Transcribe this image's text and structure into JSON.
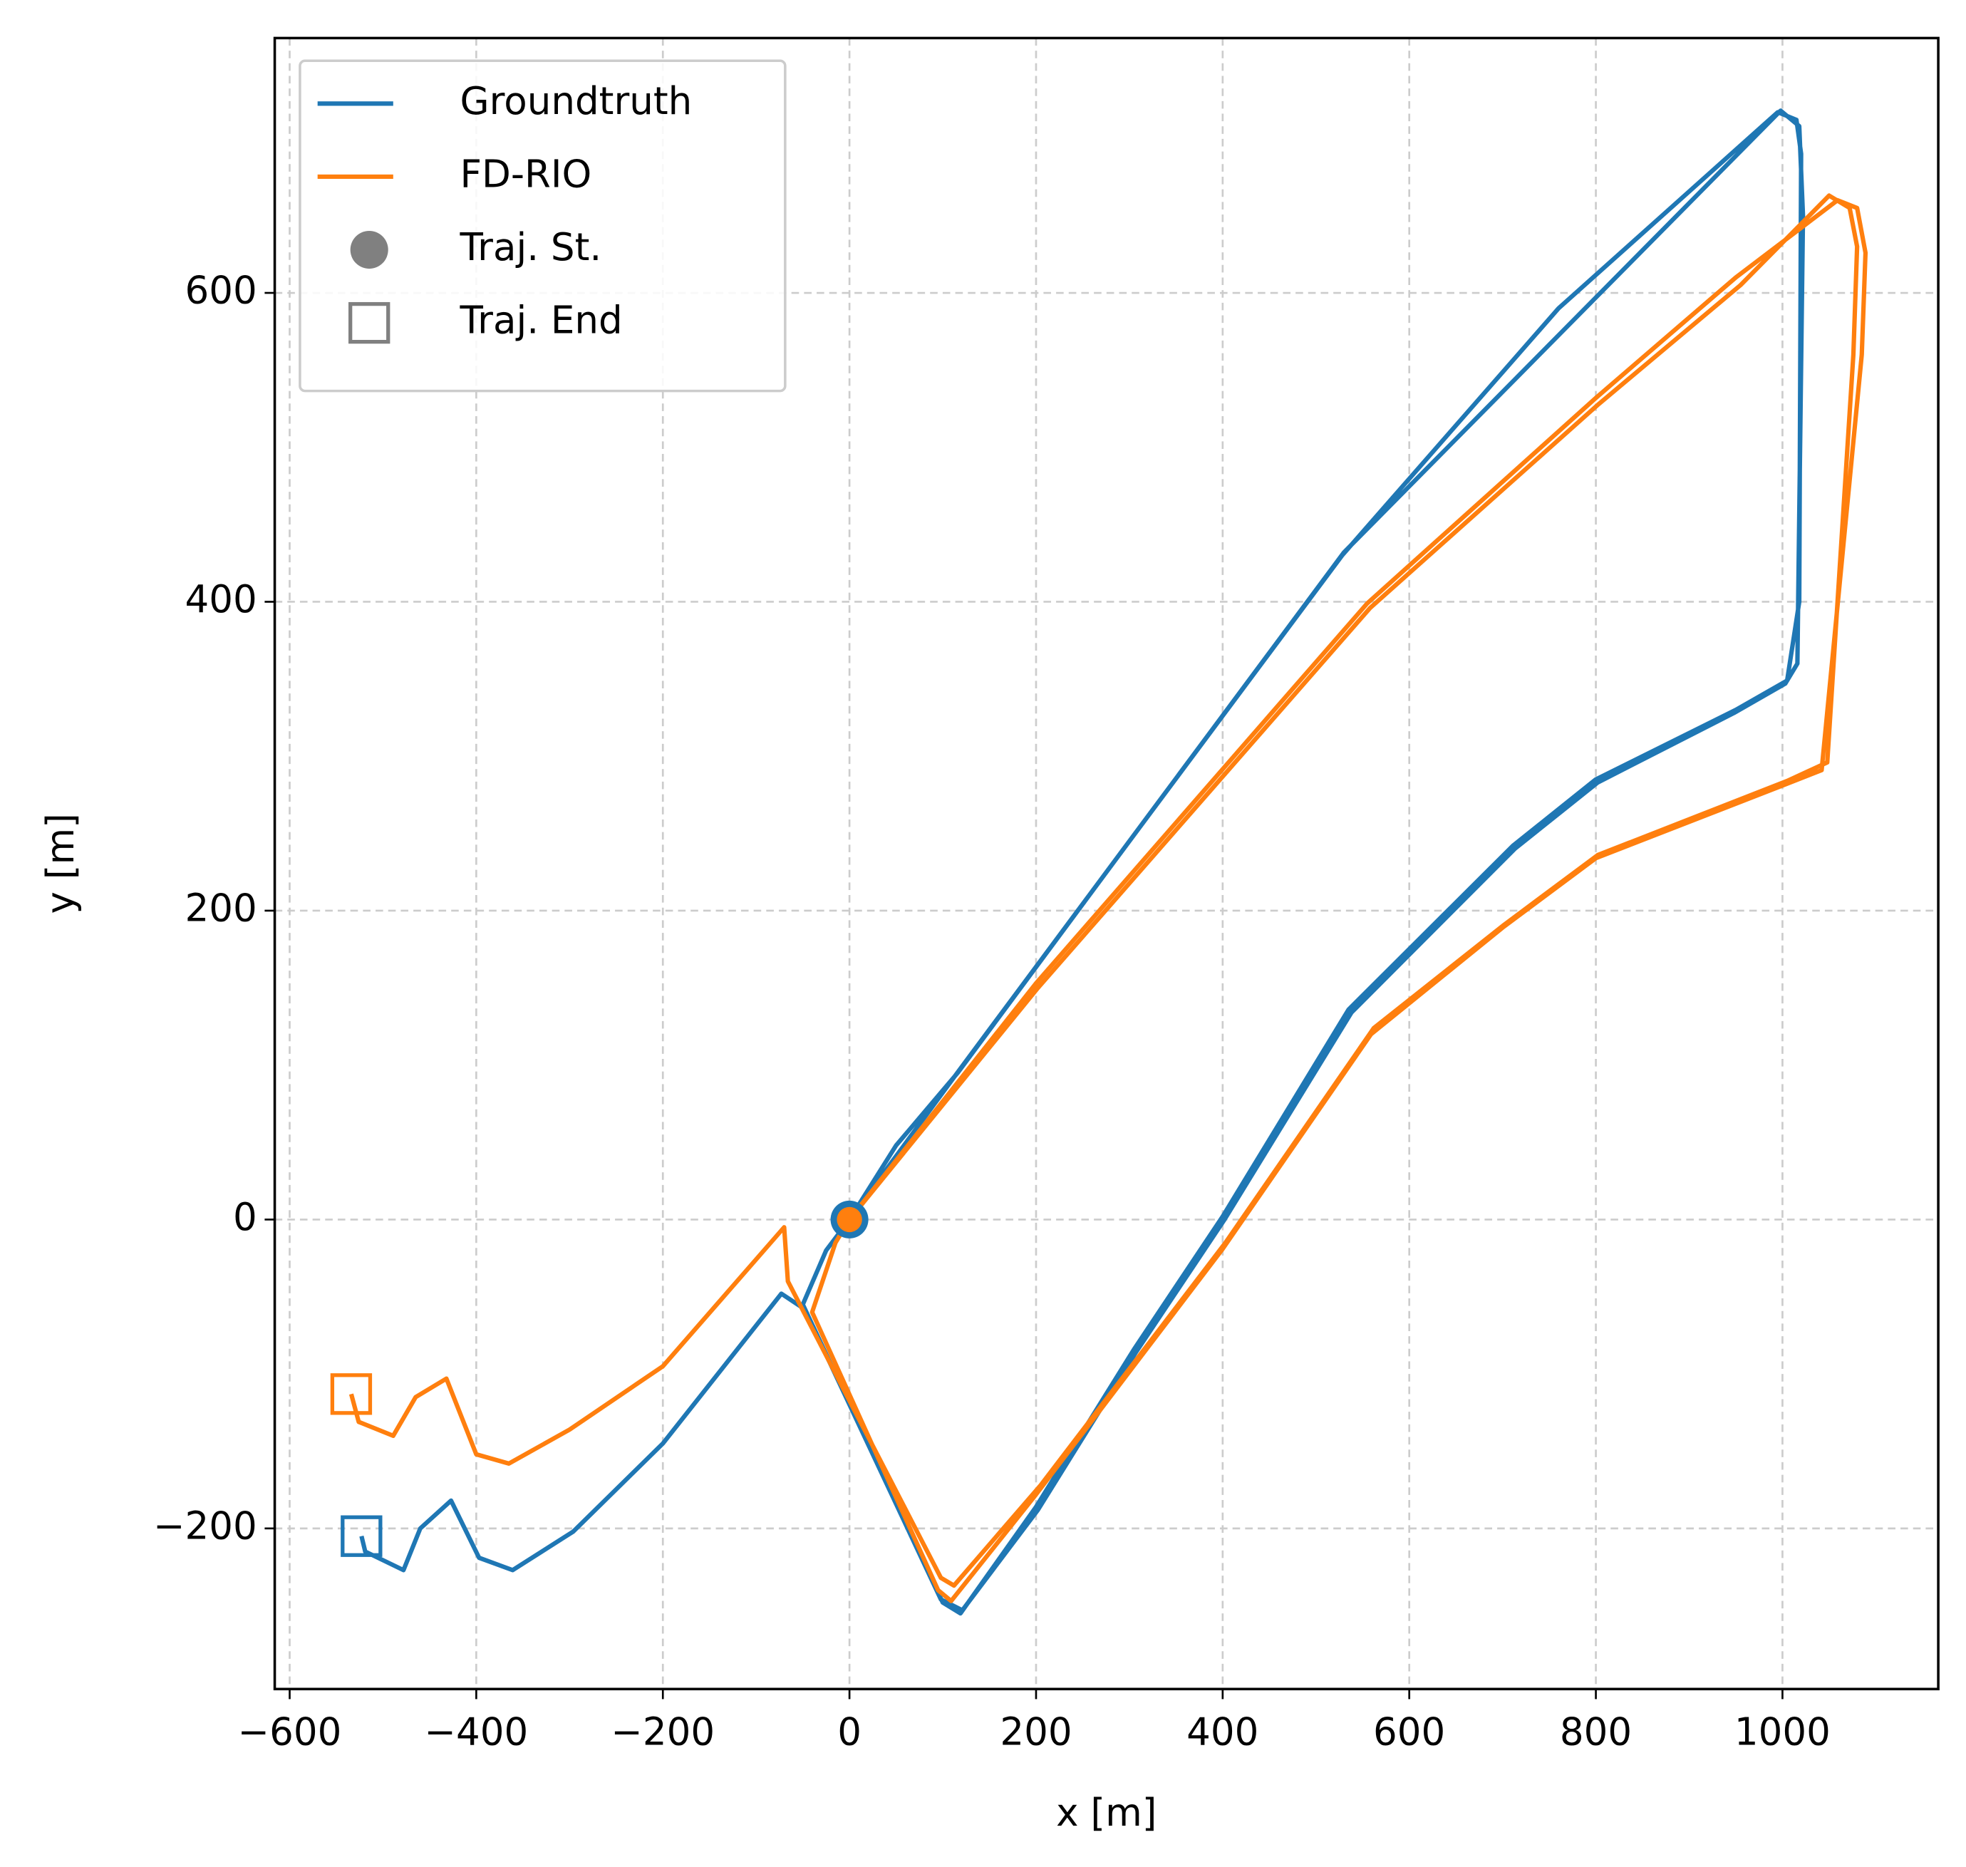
{
  "chart_data": {
    "type": "line",
    "xlabel": "x [m]",
    "ylabel": "y [m]",
    "xlim": [
      -616,
      1167
    ],
    "ylim": [
      -304,
      765
    ],
    "xticks": [
      {
        "value": -600,
        "label": "−600"
      },
      {
        "value": -400,
        "label": "−400"
      },
      {
        "value": -200,
        "label": "−200"
      },
      0,
      200,
      400,
      600,
      800,
      1000
    ],
    "yticks": [
      {
        "value": -200,
        "label": "−200"
      },
      0,
      200,
      400,
      600
    ],
    "grid": true,
    "legend": "upper left",
    "series": [
      {
        "name": "Groundtruth",
        "color": "#1f77b4",
        "x": [
          0,
          50,
          116,
          300,
          528,
          760,
          995,
          1015,
          1020,
          1018,
          1005,
          950,
          800,
          711,
          535,
          400,
          305,
          200,
          119,
          100,
          -50,
          -25,
          0,
          118,
          530,
          998,
          1018,
          1022,
          1016,
          1003,
          948,
          802,
          713,
          538,
          402,
          307,
          202,
          121,
          98,
          -48,
          -73,
          -200,
          -296,
          -361,
          -397,
          -427,
          -460,
          -478,
          -519,
          -523
        ],
        "y": [
          0,
          48,
          95,
          245,
          430,
          590,
          717,
          712,
          690,
          400,
          349,
          330,
          285,
          242,
          136,
          2,
          -84,
          -186,
          -255,
          -248,
          -55,
          -20,
          0,
          97,
          432,
          718,
          708,
          650,
          360,
          347,
          328,
          283,
          240,
          134,
          0,
          -86,
          -188,
          -253,
          -246,
          -58,
          -48,
          -145,
          -202,
          -227,
          -219,
          -182,
          -200,
          -227,
          -215,
          -205
        ],
        "start": {
          "x": 0,
          "y": 0
        },
        "end": {
          "x": -523,
          "y": -205
        }
      },
      {
        "name": "FD-RIO",
        "color": "#ff7f0e",
        "x": [
          0,
          200,
          555,
          800,
          950,
          1059,
          1080,
          1089,
          1085,
          1042,
          1000,
          800,
          700,
          559,
          400,
          200,
          109,
          95,
          -40,
          -15,
          0,
          202,
          558,
          803,
          955,
          1050,
          1072,
          1080,
          1076,
          1048,
          1005,
          802,
          702,
          562,
          403,
          205,
          112,
          98,
          -66,
          -70,
          -200,
          -300,
          -365,
          -400,
          -432,
          -465,
          -489,
          -526,
          -534
        ],
        "y": [
          0,
          153,
          399,
          532,
          610,
          660,
          655,
          626,
          560,
          291,
          281,
          234,
          189,
          120,
          -19,
          -178,
          -247,
          -240,
          -60,
          -15,
          0,
          150,
          396,
          528,
          605,
          663,
          655,
          630,
          560,
          296,
          284,
          236,
          191,
          124,
          -15,
          -172,
          -237,
          -232,
          -40,
          -5,
          -95,
          -136,
          -158,
          -152,
          -103,
          -115,
          -140,
          -131,
          -113
        ],
        "start": {
          "x": 0,
          "y": 0
        },
        "end": {
          "x": -534,
          "y": -113
        }
      }
    ],
    "markers": [
      {
        "name": "Traj. St.",
        "color": "#808080",
        "shape": "circle"
      },
      {
        "name": "Traj. End",
        "color": "#808080",
        "shape": "square"
      }
    ]
  }
}
